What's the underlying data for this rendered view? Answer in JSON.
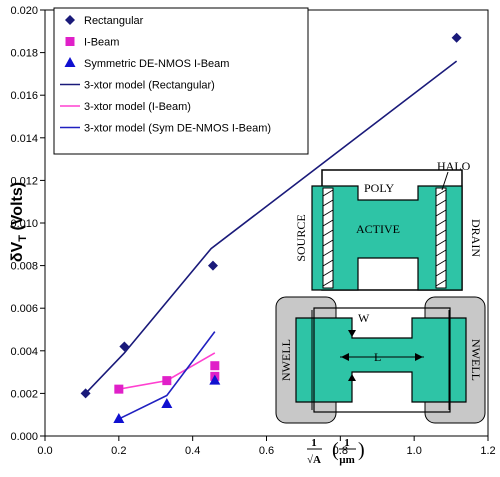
{
  "chart_data": {
    "type": "scatter",
    "title": "",
    "xlabel": "1/√A (1/µm)",
    "ylabel": "δV_T (Volts)",
    "xlim": [
      0.0,
      1.2
    ],
    "ylim": [
      0.0,
      0.02
    ],
    "x_ticks": [
      "0.0",
      "0.2",
      "0.4",
      "0.6",
      "0.8",
      "1.0",
      "1.2"
    ],
    "y_ticks": [
      "0.000",
      "0.002",
      "0.004",
      "0.006",
      "0.008",
      "0.010",
      "0.012",
      "0.014",
      "0.016",
      "0.018",
      "0.020"
    ],
    "grid": false,
    "legend_position": "top-left",
    "series": [
      {
        "name": "Rectangular",
        "kind": "points",
        "marker": "diamond",
        "color": "#1a1a7a",
        "x": [
          0.11,
          0.215,
          0.455,
          1.115
        ],
        "y": [
          0.002,
          0.0042,
          0.008,
          0.0187
        ]
      },
      {
        "name": "I-Beam",
        "kind": "points",
        "marker": "square",
        "color": "#e020c8",
        "x": [
          0.2,
          0.33,
          0.46,
          0.46
        ],
        "y": [
          0.0022,
          0.0026,
          0.0028,
          0.0033
        ]
      },
      {
        "name": "Symmetric DE-NMOS I-Beam",
        "kind": "points",
        "marker": "triangle",
        "color": "#1010d0",
        "x": [
          0.2,
          0.33,
          0.46
        ],
        "y": [
          0.0008,
          0.0015,
          0.0026
        ]
      },
      {
        "name": "3-xtor model (Rectangular)",
        "kind": "line",
        "color": "#1a1a7a",
        "x": [
          0.11,
          0.215,
          0.45,
          1.115
        ],
        "y": [
          0.002,
          0.0039,
          0.0088,
          0.0176
        ]
      },
      {
        "name": "3-xtor model (I-Beam)",
        "kind": "line",
        "color": "#ff40d0",
        "x": [
          0.2,
          0.33,
          0.46
        ],
        "y": [
          0.0022,
          0.0026,
          0.0039
        ]
      },
      {
        "name": "3-xtor model (Sym DE-NMOS I-Beam)",
        "kind": "line",
        "color": "#2020c0",
        "x": [
          0.2,
          0.33,
          0.46
        ],
        "y": [
          0.0008,
          0.0019,
          0.0049
        ]
      }
    ]
  },
  "inset": {
    "labels": {
      "halo": "HALO",
      "poly": "POLY",
      "active": "ACTIVE",
      "source": "SOURCE",
      "drain": "DRAIN",
      "w": "W",
      "l": "L",
      "nwell_left": "NWELL",
      "nwell_right": "NWELL"
    },
    "colors": {
      "active": "#2ec4a6",
      "nwell": "#c8c8c8"
    }
  }
}
